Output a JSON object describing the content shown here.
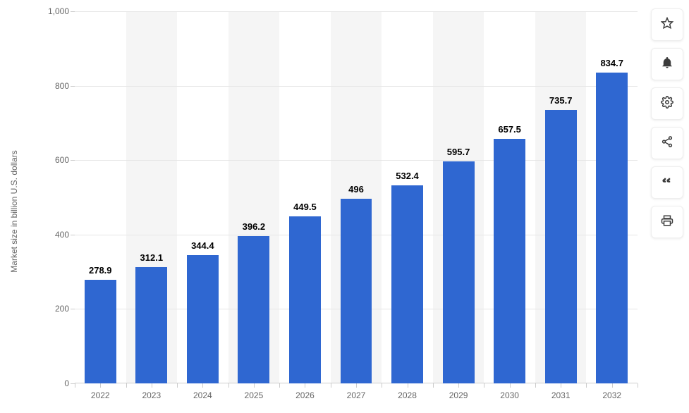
{
  "chart": {
    "type": "bar",
    "y_axis_title": "Market size in billion U.S. dollars",
    "categories": [
      "2022",
      "2023",
      "2024",
      "2025",
      "2026",
      "2027",
      "2028",
      "2029",
      "2030",
      "2031",
      "2032"
    ],
    "values": [
      278.9,
      312.1,
      344.4,
      396.2,
      449.5,
      496,
      532.4,
      595.7,
      657.5,
      735.7,
      834.7
    ],
    "value_labels": [
      "278.9",
      "312.1",
      "344.4",
      "396.2",
      "449.5",
      "496",
      "532.4",
      "595.7",
      "657.5",
      "735.7",
      "834.7"
    ],
    "bar_color": "#2f67d1",
    "background_color": "#ffffff",
    "shade_band_color": "#f5f5f5",
    "grid_color": "#e6e6e6",
    "axis_color": "#cccccc",
    "label_color": "#666666",
    "value_label_color": "#000000",
    "value_label_fontsize": 13,
    "tick_fontsize": 12,
    "axis_title_fontsize": 12,
    "ylim": [
      0,
      1000
    ],
    "ytick_step": 200,
    "ytick_labels": [
      "0",
      "200",
      "400",
      "600",
      "800",
      "1,000"
    ],
    "bar_width_ratio": 0.62
  },
  "toolbar": {
    "items": [
      {
        "name": "star-icon"
      },
      {
        "name": "bell-icon"
      },
      {
        "name": "gear-icon"
      },
      {
        "name": "share-icon"
      },
      {
        "name": "quote-icon"
      },
      {
        "name": "print-icon"
      }
    ]
  }
}
